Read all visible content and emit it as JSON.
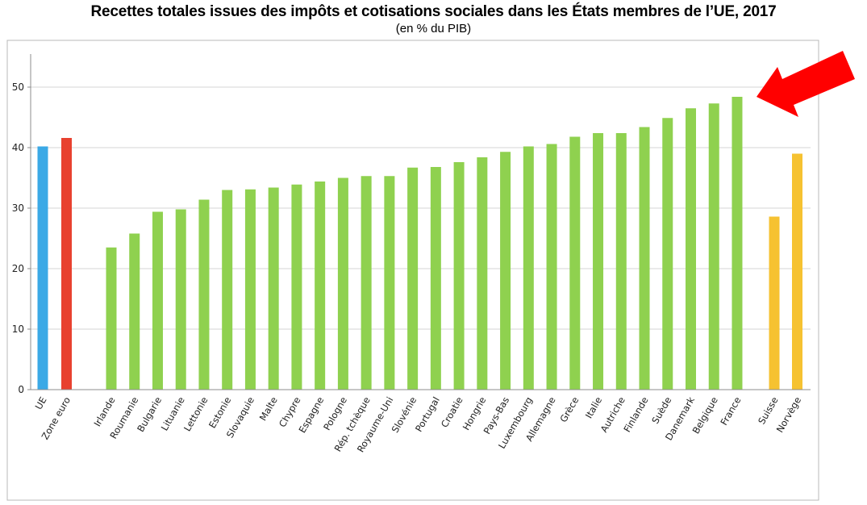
{
  "chart_data": {
    "type": "bar",
    "title": "Recettes totales issues des impôts et cotisations sociales dans les États membres de l’UE, 2017",
    "subtitle": "(en % du PIB)",
    "xlabel": "",
    "ylabel": "",
    "ylim": [
      0,
      55
    ],
    "yticks": [
      0,
      10,
      20,
      30,
      40,
      50
    ],
    "grid": true,
    "categories": [
      "UE",
      "Zone euro",
      "Irlande",
      "Roumanie",
      "Bulgarie",
      "Lituanie",
      "Lettonie",
      "Estonie",
      "Slovaquie",
      "Malte",
      "Chypre",
      "Espagne",
      "Pologne",
      "Rép. tchèque",
      "Royaume-Uni",
      "Slovénie",
      "Portugal",
      "Croatie",
      "Hongrie",
      "Pays-Bas",
      "Luxembourg",
      "Allemagne",
      "Grèce",
      "Italie",
      "Autriche",
      "Finlande",
      "Suède",
      "Danemark",
      "Belgique",
      "France",
      "Suisse",
      "Norvège"
    ],
    "values": [
      40.2,
      41.6,
      23.5,
      25.8,
      29.4,
      29.8,
      31.4,
      33.0,
      33.1,
      33.4,
      33.9,
      34.4,
      35.0,
      35.3,
      35.3,
      36.7,
      36.8,
      37.6,
      38.4,
      39.3,
      40.2,
      40.6,
      41.8,
      42.4,
      42.4,
      43.4,
      44.9,
      46.5,
      47.3,
      48.4,
      28.6,
      39.0
    ],
    "colors": [
      "#3ba9e6",
      "#e8412f",
      "#8fd14f",
      "#8fd14f",
      "#8fd14f",
      "#8fd14f",
      "#8fd14f",
      "#8fd14f",
      "#8fd14f",
      "#8fd14f",
      "#8fd14f",
      "#8fd14f",
      "#8fd14f",
      "#8fd14f",
      "#8fd14f",
      "#8fd14f",
      "#8fd14f",
      "#8fd14f",
      "#8fd14f",
      "#8fd14f",
      "#8fd14f",
      "#8fd14f",
      "#8fd14f",
      "#8fd14f",
      "#8fd14f",
      "#8fd14f",
      "#8fd14f",
      "#8fd14f",
      "#8fd14f",
      "#8fd14f",
      "#f6c231",
      "#f6c231"
    ],
    "annotation": {
      "shape": "red-arrow-icon",
      "color": "#ff0000",
      "points_to": "France"
    }
  }
}
